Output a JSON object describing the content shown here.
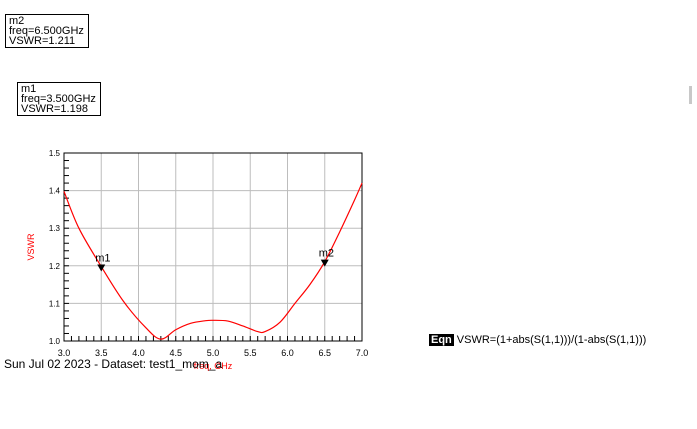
{
  "markers": {
    "m2": {
      "name": "m2",
      "freq": "freq=6.500GHz",
      "vswr": "VSWR=1.211"
    },
    "m1": {
      "name": "m1",
      "freq": "freq=3.500GHz",
      "vswr": "VSWR=1.198"
    }
  },
  "equation": {
    "tag": "Eqn",
    "text": "VSWR=(1+abs(S(1,1)))/(1-abs(S(1,1)))"
  },
  "footer": "Sun Jul 02 2023 - Dataset: test1_mom_a",
  "colors": {
    "trace": "#ff0000",
    "grid": "#bdbdbd",
    "axis_label": "#ff0000"
  },
  "chart_data": {
    "type": "line",
    "xlabel": "freq, GHz",
    "ylabel": "VSWR",
    "xlim": [
      3.0,
      7.0
    ],
    "ylim": [
      1.0,
      1.5
    ],
    "x_ticks": [
      "3.0",
      "3.5",
      "4.0",
      "4.5",
      "5.0",
      "5.5",
      "6.0",
      "6.5",
      "7.0"
    ],
    "y_ticks": [
      "1.0",
      "1.1",
      "1.2",
      "1.3",
      "1.4",
      "1.5"
    ],
    "grid": true,
    "series": [
      {
        "x": [
          3.0,
          3.2,
          3.5,
          3.8,
          4.1,
          4.3,
          4.5,
          4.7,
          4.9,
          5.0,
          5.2,
          5.4,
          5.6,
          5.7,
          5.9,
          6.1,
          6.3,
          6.5,
          6.7,
          6.9,
          7.0
        ],
        "y": [
          1.398,
          1.3,
          1.198,
          1.105,
          1.035,
          1.005,
          1.03,
          1.047,
          1.054,
          1.055,
          1.053,
          1.04,
          1.025,
          1.025,
          1.05,
          1.1,
          1.15,
          1.211,
          1.29,
          1.375,
          1.42
        ]
      }
    ],
    "markers": [
      {
        "label": "m1",
        "x": 3.5,
        "y": 1.198
      },
      {
        "label": "m2",
        "x": 6.5,
        "y": 1.211
      }
    ]
  }
}
